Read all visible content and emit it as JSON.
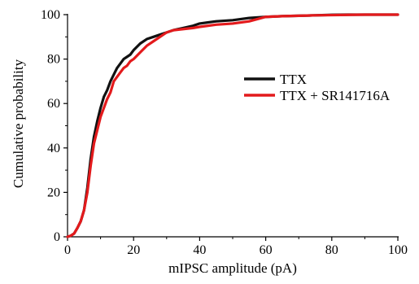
{
  "chart_data": {
    "type": "line",
    "xlabel": "mIPSC amplitude (pA)",
    "ylabel": "Cumulative probability",
    "xlim": [
      0,
      100
    ],
    "ylim": [
      0,
      100
    ],
    "x_ticks": [
      "0",
      "20",
      "40",
      "60",
      "80",
      "100"
    ],
    "y_ticks": [
      "0",
      "20",
      "40",
      "60",
      "80",
      "100"
    ],
    "grid": false,
    "legend_position": "right",
    "series": [
      {
        "name": "TTX",
        "color": "#111111",
        "x": [
          0,
          1,
          2,
          3,
          4,
          5,
          6,
          7,
          8,
          9,
          10,
          11,
          12,
          13,
          14,
          15,
          16,
          17,
          18,
          19,
          20,
          22,
          24,
          26,
          28,
          30,
          32,
          35,
          38,
          40,
          45,
          50,
          55,
          60,
          65,
          70,
          75,
          80,
          85,
          90,
          95,
          100
        ],
        "y": [
          0,
          0.5,
          1.5,
          4,
          7,
          12,
          22,
          35,
          45,
          52,
          58,
          63,
          66,
          70,
          73,
          76,
          78,
          80,
          81,
          82,
          84,
          87,
          89,
          90,
          91,
          92,
          93,
          94,
          95,
          96,
          97,
          97.5,
          98.5,
          99,
          99.3,
          99.5,
          99.7,
          99.9,
          100,
          100,
          100,
          100
        ]
      },
      {
        "name": "TTX + SR141716A",
        "color": "#e31a1c",
        "x": [
          0,
          1,
          2,
          3,
          4,
          5,
          6,
          7,
          8,
          9,
          10,
          11,
          12,
          13,
          14,
          15,
          16,
          17,
          18,
          19,
          20,
          22,
          24,
          26,
          28,
          30,
          32,
          35,
          38,
          40,
          45,
          50,
          55,
          60,
          65,
          70,
          75,
          80,
          85,
          90,
          95,
          100
        ],
        "y": [
          0,
          0.5,
          1.5,
          4,
          7,
          12,
          20,
          32,
          42,
          48,
          54,
          58,
          62,
          65,
          70,
          72,
          74,
          76,
          77,
          79,
          80,
          83,
          86,
          88,
          90,
          92,
          93,
          93.5,
          94,
          94.5,
          95.5,
          96,
          97,
          99,
          99.3,
          99.5,
          99.7,
          99.8,
          99.9,
          100,
          100,
          100
        ]
      }
    ]
  }
}
